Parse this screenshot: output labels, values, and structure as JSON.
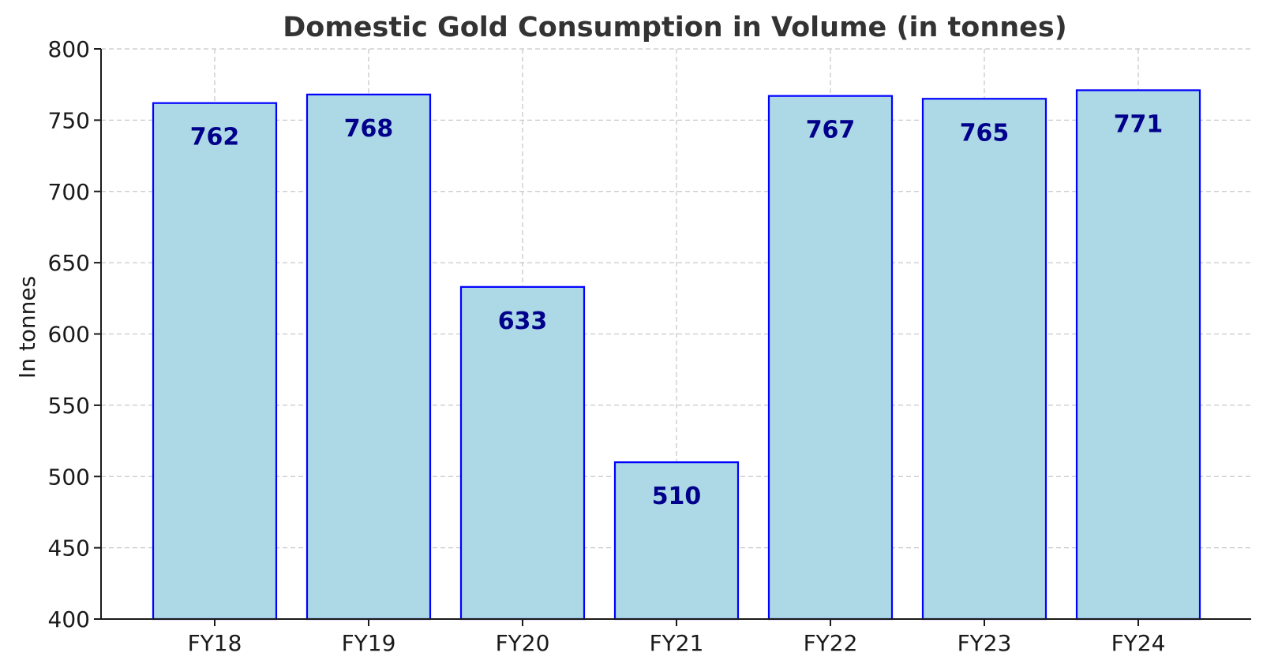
{
  "chart_data": {
    "type": "bar",
    "title": "Domestic Gold Consumption in Volume (in tonnes)",
    "xlabel": "",
    "ylabel": "In tonnes",
    "categories": [
      "FY18",
      "FY19",
      "FY20",
      "FY21",
      "FY22",
      "FY23",
      "FY24"
    ],
    "values": [
      762,
      768,
      633,
      510,
      767,
      765,
      771
    ],
    "data_labels": [
      "762",
      "768",
      "633",
      "510",
      "767",
      "765",
      "771"
    ],
    "ylim": [
      400,
      800
    ],
    "yticks": [
      "400",
      "450",
      "500",
      "550",
      "600",
      "650",
      "700",
      "750",
      "800"
    ],
    "grid": true,
    "legend": "none",
    "colors": {
      "bar_fill": "#add8e6",
      "bar_edge": "#0000ff",
      "data_label": "#00008b",
      "title": "#333333",
      "grid": "#c8c8c8"
    }
  }
}
